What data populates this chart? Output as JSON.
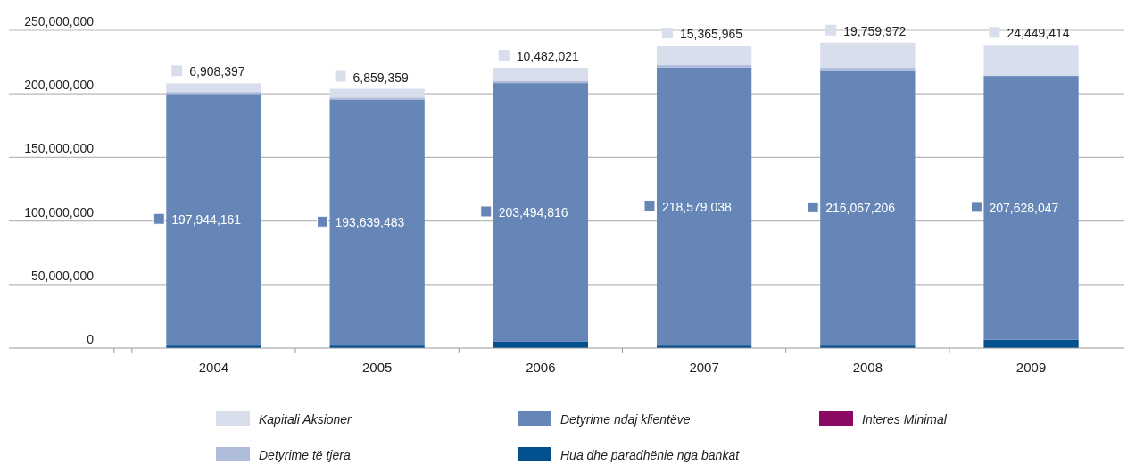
{
  "chart_data": {
    "type": "bar",
    "stacked": true,
    "categories": [
      "2004",
      "2005",
      "2006",
      "2007",
      "2008",
      "2009"
    ],
    "series": [
      {
        "name": "Hua dhe paradhënie nga bankat",
        "color": "#03508f",
        "values": [
          2000000,
          2000000,
          5000000,
          2000000,
          2000000,
          6500000
        ]
      },
      {
        "name": "Detyrime ndaj klientëve",
        "color": "#6586b6",
        "values": [
          197944161,
          193639483,
          203494816,
          218579038,
          216067206,
          207628047
        ],
        "value_labels": [
          "197,944,161",
          "193,639,483",
          "203,494,816",
          "218,579,038",
          "216,067,206",
          "207,628,047"
        ]
      },
      {
        "name": "Interes Minimal",
        "color": "#8b0a66",
        "values": [
          0,
          0,
          0,
          0,
          0,
          0
        ]
      },
      {
        "name": "Detyrime të tjera",
        "color": "#b0bcdc",
        "values": [
          1500000,
          1500000,
          1500000,
          2000000,
          2500000,
          null
        ]
      },
      {
        "name": "Kapitali Aksioner",
        "color": "#d9deec",
        "values": [
          6908397,
          6859359,
          10482021,
          15365965,
          19759972,
          24449414
        ],
        "value_labels": [
          "6,908,397",
          "6,859,359",
          "10,482,021",
          "15,365,965",
          "19,759,972",
          "24,449,414"
        ]
      }
    ],
    "ylim": [
      0,
      250000000
    ],
    "yticks": [
      {
        "value": 0,
        "label": "0"
      },
      {
        "value": 50000000,
        "label": "50,000,000"
      },
      {
        "value": 100000000,
        "label": "100,000,000"
      },
      {
        "value": 150000000,
        "label": "150,000,000"
      },
      {
        "value": 200000000,
        "label": "200,000,000"
      },
      {
        "value": 250000000,
        "label": "250,000,000"
      }
    ],
    "grid": "y",
    "legend": "bottom"
  }
}
